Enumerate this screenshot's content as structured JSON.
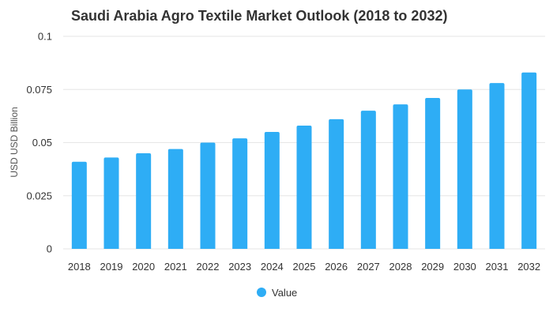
{
  "chart_data": {
    "type": "bar",
    "title": "Saudi Arabia Agro Textile Market Outlook (2018 to 2032)",
    "xlabel": "",
    "ylabel": "USD USD Billion",
    "categories": [
      "2018",
      "2019",
      "2020",
      "2021",
      "2022",
      "2023",
      "2024",
      "2025",
      "2026",
      "2027",
      "2028",
      "2029",
      "2030",
      "2031",
      "2032"
    ],
    "series": [
      {
        "name": "Value",
        "color": "#2EADF5",
        "values": [
          0.041,
          0.043,
          0.045,
          0.047,
          0.05,
          0.052,
          0.055,
          0.058,
          0.061,
          0.065,
          0.068,
          0.071,
          0.075,
          0.078,
          0.083
        ]
      }
    ],
    "ylim": [
      0,
      0.1
    ],
    "yticks": [
      "0",
      "0.025",
      "0.05",
      "0.075",
      "0.1"
    ],
    "ytick_values": [
      0,
      0.025,
      0.05,
      0.075,
      0.1
    ],
    "grid": true,
    "legend_position": "bottom-center"
  }
}
